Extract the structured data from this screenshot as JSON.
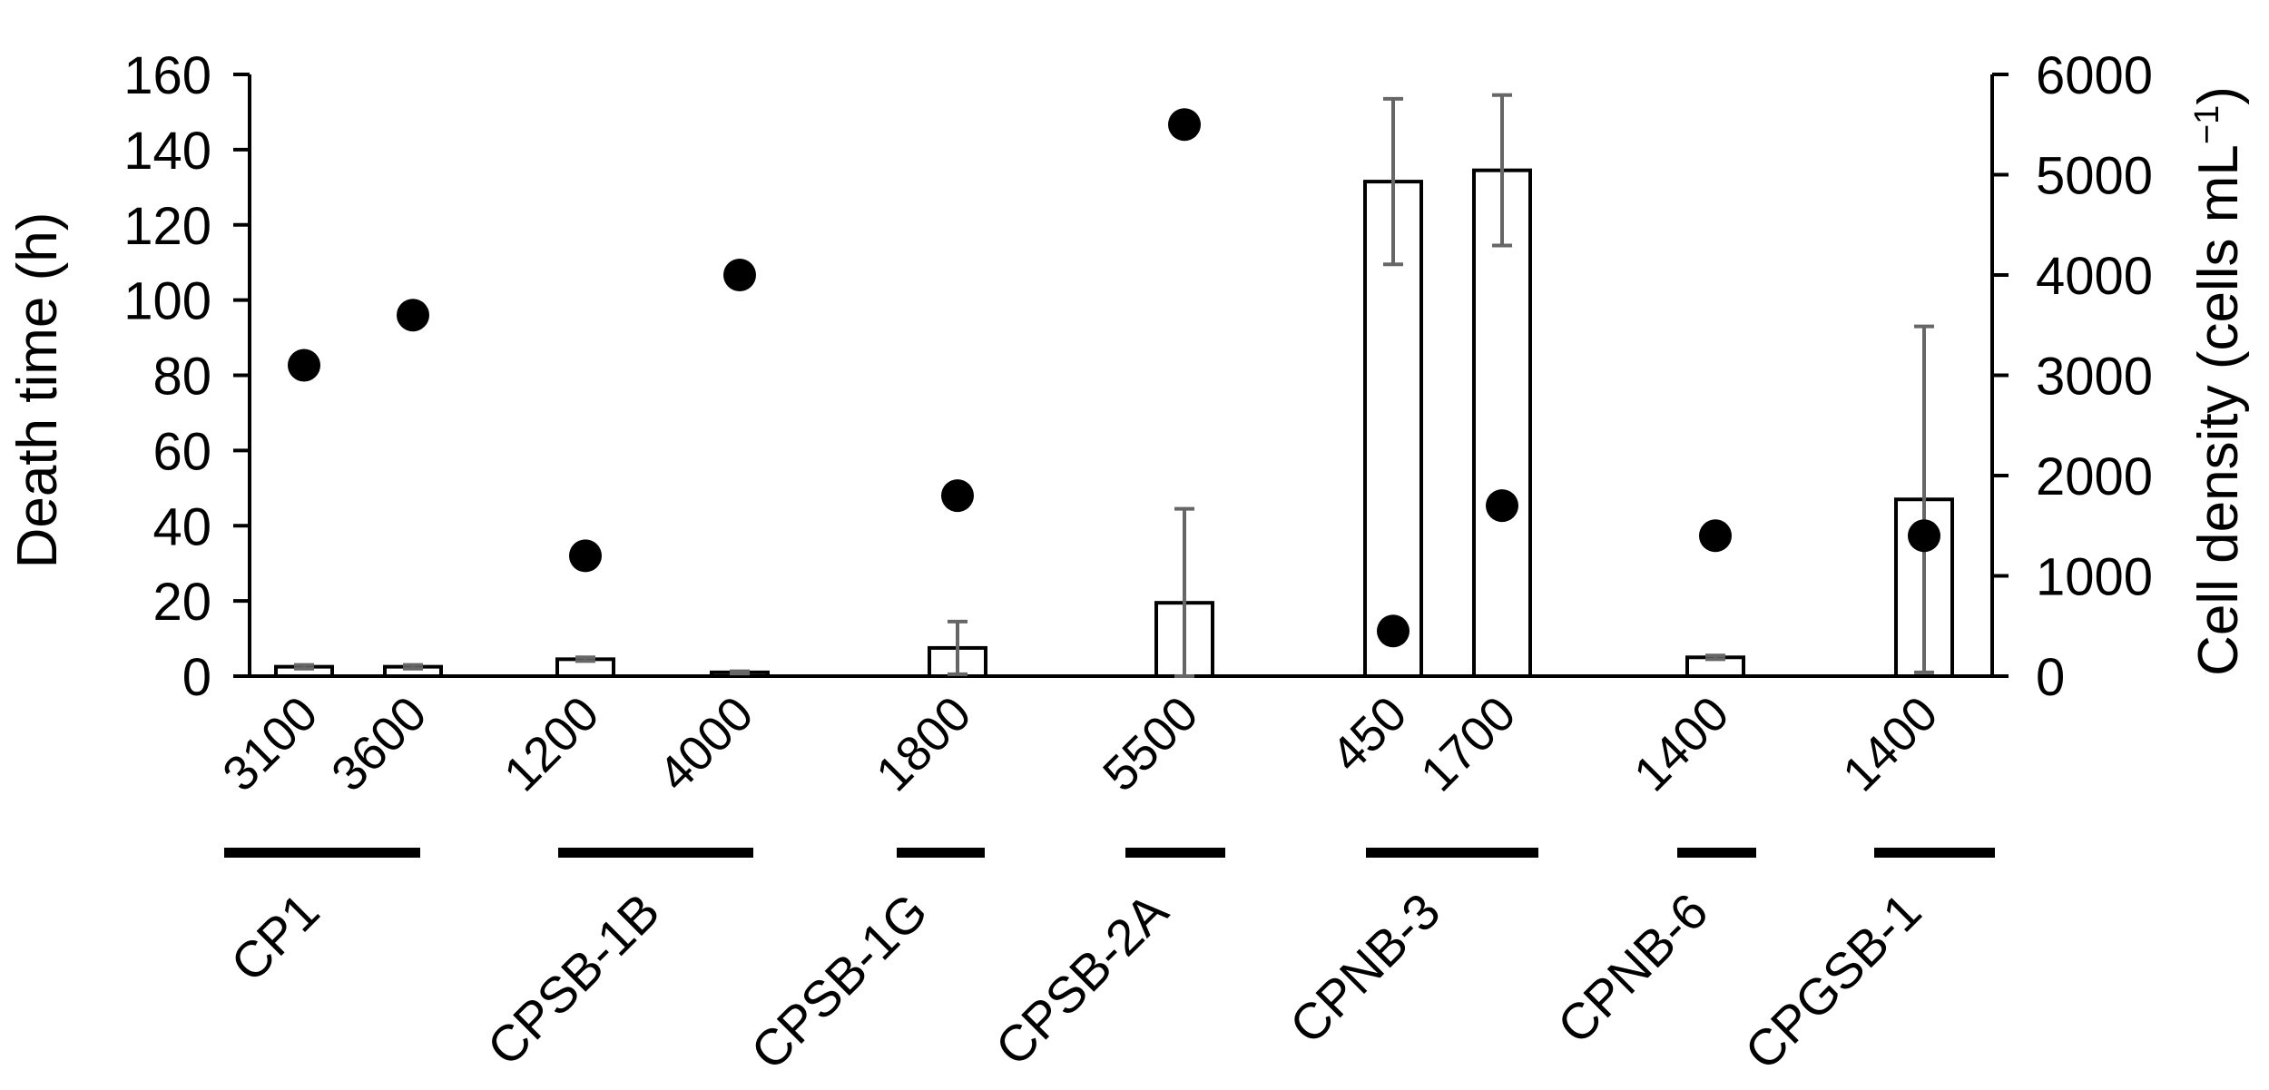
{
  "chart_data": {
    "type": "bar",
    "ylabel": "Death time (h)",
    "y2label_main": "Cell density (cells mL",
    "y2label_sup": "−1",
    "y2label_close": ")",
    "ylim": [
      0,
      160
    ],
    "y_ticks": [
      "0",
      "20",
      "40",
      "60",
      "80",
      "100",
      "120",
      "140",
      "160"
    ],
    "y2lim": [
      0,
      6000
    ],
    "y2_ticks": [
      "0",
      "1000",
      "2000",
      "3000",
      "4000",
      "5000",
      "6000"
    ],
    "categories": [
      "3100",
      "3600",
      "1200",
      "4000",
      "1800",
      "5500",
      "450",
      "1700",
      "1400",
      "1400"
    ],
    "groups": [
      "CP1",
      "CPSB-1B",
      "CPSB-1G",
      "CPSB-2A",
      "CPNB-3",
      "CPNB-6",
      "CPGSB-1"
    ],
    "series": [
      {
        "kind": "bar",
        "axis": "left",
        "values": [
          2.5,
          2.5,
          4.5,
          1,
          7.5,
          19.5,
          131.5,
          134.5,
          5,
          47
        ],
        "error": [
          0.5,
          0.5,
          0.5,
          0.3,
          7,
          25,
          22,
          20,
          0.5,
          46
        ]
      },
      {
        "kind": "scatter",
        "axis": "right",
        "values": [
          3100,
          3600,
          1200,
          4000,
          1800,
          5500,
          450,
          1700,
          1400,
          1400
        ]
      }
    ],
    "colors": {
      "bar_fill": "#ffffff",
      "bar_stroke": "#000000",
      "error": "#666666",
      "point": "#000000",
      "group_bar": "#000000"
    },
    "grid": false,
    "legend": "none"
  }
}
